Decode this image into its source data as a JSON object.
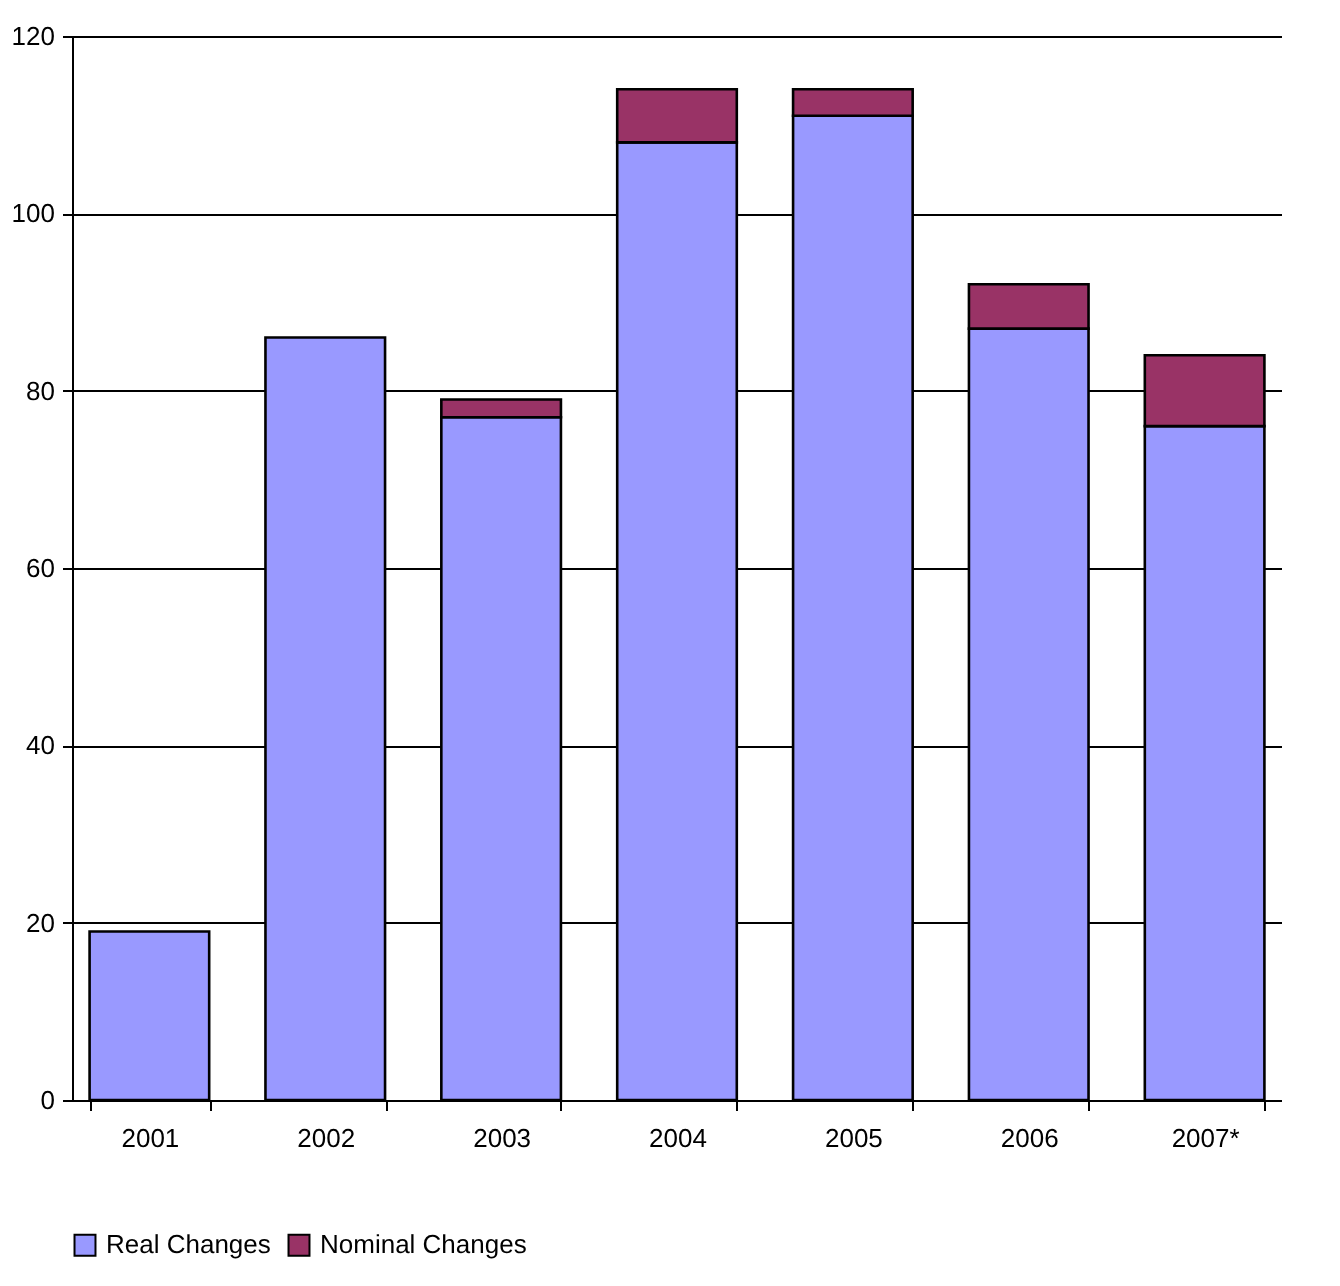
{
  "chart_data": {
    "type": "bar",
    "stacked": true,
    "categories": [
      "2001",
      "2002",
      "2003",
      "2004",
      "2005",
      "2006",
      "2007*"
    ],
    "series": [
      {
        "name": "Real Changes",
        "color": "#9999ff",
        "values": [
          19,
          86,
          77,
          108,
          111,
          87,
          76
        ]
      },
      {
        "name": "Nominal Changes",
        "color": "#993366",
        "values": [
          null,
          null,
          2,
          6,
          3,
          5,
          8
        ]
      }
    ],
    "ylim": [
      0,
      120
    ],
    "yticks": [
      0,
      20,
      40,
      60,
      80,
      100,
      120
    ],
    "grid": "y",
    "legend": "bottom"
  }
}
